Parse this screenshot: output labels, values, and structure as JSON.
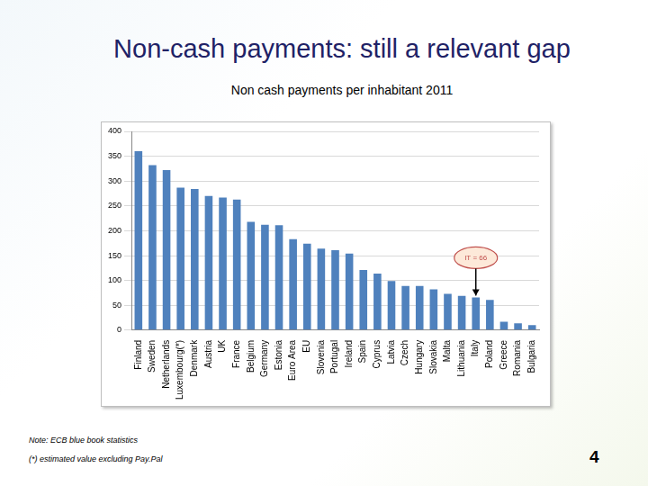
{
  "chart_data": {
    "type": "bar",
    "title": "Non-cash payments: still a relevant gap",
    "subtitle": "Non cash payments per inhabitant 2011",
    "categories": [
      "Finland",
      "Sweden",
      "Netherlands",
      "Luxembourg(*)",
      "Denmark",
      "Austria",
      "UK",
      "France",
      "Belgium",
      "Germany",
      "Estonia",
      "Euro Area",
      "EU",
      "Slovenia",
      "Portugal",
      "Ireland",
      "Spain",
      "Cyprus",
      "Latvia",
      "Czech",
      "Hungary",
      "Slovakia",
      "Malta",
      "Lithuania",
      "Italy",
      "Poland",
      "Greece",
      "Romania",
      "Bulgaria"
    ],
    "values": [
      360,
      332,
      322,
      287,
      284,
      270,
      267,
      263,
      218,
      212,
      211,
      183,
      174,
      164,
      161,
      154,
      121,
      114,
      99,
      89,
      89,
      82,
      73,
      69,
      66,
      61,
      17,
      14,
      10
    ],
    "color": "#4f81bd",
    "ylim": [
      0,
      400
    ],
    "yticks": [
      0,
      50,
      100,
      150,
      200,
      250,
      300,
      350,
      400
    ],
    "grid": true,
    "annotations": [
      {
        "text": "IT = 66",
        "category": "Italy"
      }
    ],
    "notes": [
      "Note: ECB blue book statistics",
      "(*) estimated value excluding Pay.Pal"
    ],
    "page_number": 4
  }
}
